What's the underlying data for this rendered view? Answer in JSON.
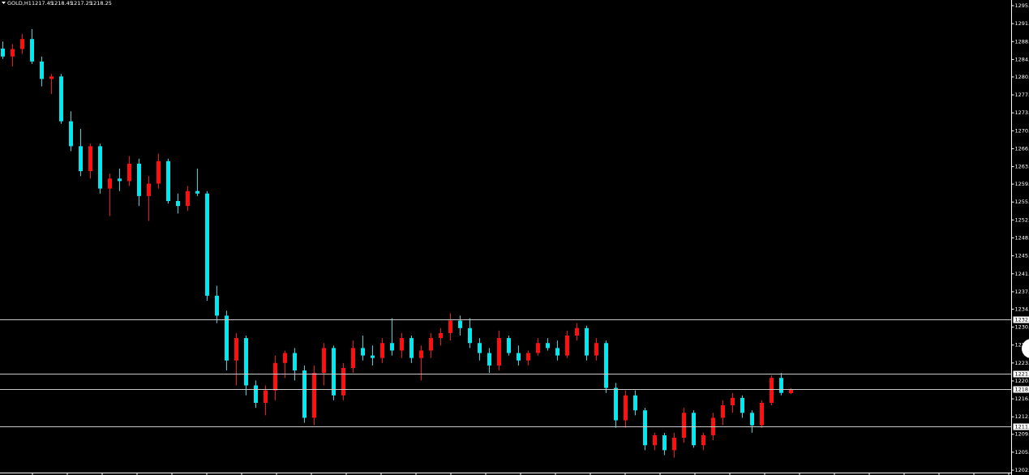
{
  "chart_data": {
    "type": "candlestick",
    "title": "GOLD,H1",
    "ylim": [
      1202.0,
      1295.2
    ],
    "yticks": [
      {
        "value": 1295.2,
        "label": "1295."
      },
      {
        "value": 1291.6,
        "label": "1291."
      },
      {
        "value": 1288.0,
        "label": "1288."
      },
      {
        "value": 1284.4,
        "label": "1284."
      },
      {
        "value": 1280.9,
        "label": "1280."
      },
      {
        "value": 1277.3,
        "label": "1277."
      },
      {
        "value": 1273.7,
        "label": "1273."
      },
      {
        "value": 1270.1,
        "label": "1270."
      },
      {
        "value": 1266.5,
        "label": "1266."
      },
      {
        "value": 1262.9,
        "label": "1263."
      },
      {
        "value": 1259.4,
        "label": "1259."
      },
      {
        "value": 1255.8,
        "label": "1255."
      },
      {
        "value": 1252.2,
        "label": "1252."
      },
      {
        "value": 1248.6,
        "label": "1248."
      },
      {
        "value": 1245.0,
        "label": "1245."
      },
      {
        "value": 1241.4,
        "label": "1241."
      },
      {
        "value": 1237.8,
        "label": "1237."
      },
      {
        "value": 1234.3,
        "label": "1234."
      },
      {
        "value": 1230.7,
        "label": "1230."
      },
      {
        "value": 1227.1,
        "label": "1227."
      },
      {
        "value": 1223.5,
        "label": "1223."
      },
      {
        "value": 1219.9,
        "label": "1220."
      },
      {
        "value": 1216.3,
        "label": "1216."
      },
      {
        "value": 1212.7,
        "label": "1212."
      },
      {
        "value": 1209.2,
        "label": "1209."
      },
      {
        "value": 1205.6,
        "label": "1205."
      },
      {
        "value": 1202.0,
        "label": "1202."
      }
    ],
    "hlines": [
      {
        "value": 1232.3,
        "label": "1232."
      },
      {
        "value": 1221.4,
        "label": "1221."
      },
      {
        "value": 1218.2,
        "label": "1218."
      },
      {
        "value": 1210.8,
        "label": "1211."
      }
    ],
    "up_color": "#ff1010",
    "down_color": "#00e8f0",
    "open": [
      1286.6,
      1285.0,
      1286.5,
      1288.5,
      1284.0,
      1280.5,
      1281.0,
      1272.0,
      1267.0,
      1262.0,
      1267.0,
      1258.5,
      1260.5,
      1260.0,
      1263.5,
      1257.0,
      1259.5,
      1264.0,
      1256.0,
      1255.0,
      1258.0,
      1257.5,
      1237.0,
      1233.0,
      1224.0,
      1228.5,
      1219.0,
      1215.5,
      1218.0,
      1223.5,
      1225.5,
      1222.0,
      1212.5,
      1221.5,
      1226.5,
      1217.0,
      1222.5,
      1226.5,
      1225.0,
      1224.5,
      1227.5,
      1226.0,
      1228.5,
      1224.5,
      1226.0,
      1228.5,
      1229.5,
      1232.0,
      1230.5,
      1227.5,
      1225.5,
      1223.0,
      1228.5,
      1225.5,
      1224.0,
      1225.5,
      1227.5,
      1226.5,
      1225.0,
      1229.0,
      1230.5,
      1225.0,
      1227.5,
      1218.5,
      1212.0,
      1217.0,
      1214.0,
      1207.0,
      1209.0,
      1206.0,
      1208.5,
      1213.5,
      1207.0,
      1209.0,
      1212.5,
      1215.0,
      1216.5,
      1213.5,
      1211.0,
      1215.5,
      1220.5,
      1217.45
    ],
    "high": [
      1288.0,
      1287.5,
      1289.5,
      1290.5,
      1285.0,
      1281.5,
      1281.5,
      1274.0,
      1270.5,
      1267.5,
      1267.5,
      1261.5,
      1262.5,
      1265.0,
      1264.5,
      1261.0,
      1265.5,
      1264.5,
      1257.5,
      1259.0,
      1262.5,
      1258.0,
      1239.0,
      1234.0,
      1229.5,
      1229.0,
      1220.0,
      1219.0,
      1225.0,
      1226.0,
      1226.5,
      1223.0,
      1223.0,
      1227.5,
      1227.0,
      1223.5,
      1228.0,
      1229.0,
      1227.0,
      1228.5,
      1232.5,
      1229.5,
      1229.0,
      1227.0,
      1229.5,
      1230.5,
      1233.5,
      1233.0,
      1232.5,
      1228.5,
      1226.5,
      1230.0,
      1229.0,
      1227.0,
      1226.0,
      1228.5,
      1228.5,
      1228.0,
      1230.0,
      1231.5,
      1231.0,
      1228.5,
      1228.0,
      1219.5,
      1218.0,
      1218.0,
      1214.5,
      1209.5,
      1209.5,
      1209.5,
      1214.5,
      1214.0,
      1209.5,
      1213.5,
      1216.0,
      1217.5,
      1217.0,
      1214.0,
      1216.0,
      1221.0,
      1221.5,
      1218.45
    ],
    "low": [
      1284.5,
      1283.0,
      1285.5,
      1283.5,
      1279.0,
      1277.5,
      1271.5,
      1266.0,
      1261.0,
      1260.5,
      1257.5,
      1253.0,
      1258.0,
      1259.0,
      1255.0,
      1252.0,
      1258.5,
      1255.5,
      1253.5,
      1254.0,
      1257.0,
      1236.0,
      1231.5,
      1222.0,
      1219.0,
      1217.0,
      1214.5,
      1213.0,
      1216.0,
      1220.5,
      1220.0,
      1211.5,
      1211.0,
      1219.0,
      1216.0,
      1216.0,
      1221.5,
      1224.0,
      1223.0,
      1223.5,
      1225.0,
      1224.5,
      1223.5,
      1220.0,
      1224.5,
      1227.0,
      1228.0,
      1229.0,
      1226.5,
      1224.0,
      1221.5,
      1222.0,
      1225.0,
      1223.0,
      1223.0,
      1225.0,
      1226.0,
      1224.0,
      1224.5,
      1228.0,
      1224.0,
      1224.0,
      1217.5,
      1210.5,
      1210.5,
      1213.0,
      1206.0,
      1206.0,
      1205.0,
      1204.5,
      1207.5,
      1206.5,
      1206.0,
      1208.0,
      1211.0,
      1213.5,
      1212.5,
      1209.5,
      1210.5,
      1215.0,
      1217.0,
      1217.25
    ],
    "close": [
      1285.0,
      1286.5,
      1288.5,
      1284.0,
      1280.5,
      1281.0,
      1272.0,
      1267.0,
      1262.0,
      1267.0,
      1258.5,
      1260.5,
      1260.0,
      1263.5,
      1257.0,
      1259.5,
      1264.0,
      1256.0,
      1255.0,
      1258.0,
      1257.5,
      1237.0,
      1233.0,
      1224.0,
      1228.5,
      1219.0,
      1215.5,
      1218.0,
      1223.5,
      1225.5,
      1222.0,
      1212.5,
      1221.5,
      1226.5,
      1217.0,
      1222.5,
      1226.5,
      1225.0,
      1224.5,
      1227.5,
      1226.0,
      1228.5,
      1224.5,
      1226.0,
      1228.5,
      1229.5,
      1232.0,
      1230.5,
      1227.5,
      1225.5,
      1223.0,
      1228.5,
      1225.5,
      1224.0,
      1225.5,
      1227.5,
      1226.5,
      1225.0,
      1229.0,
      1230.5,
      1225.0,
      1227.5,
      1218.5,
      1212.0,
      1217.0,
      1214.0,
      1207.0,
      1209.0,
      1206.0,
      1208.5,
      1213.5,
      1207.0,
      1209.0,
      1212.5,
      1215.0,
      1216.5,
      1213.5,
      1211.0,
      1215.5,
      1220.5,
      1217.5,
      1218.25
    ]
  }
}
